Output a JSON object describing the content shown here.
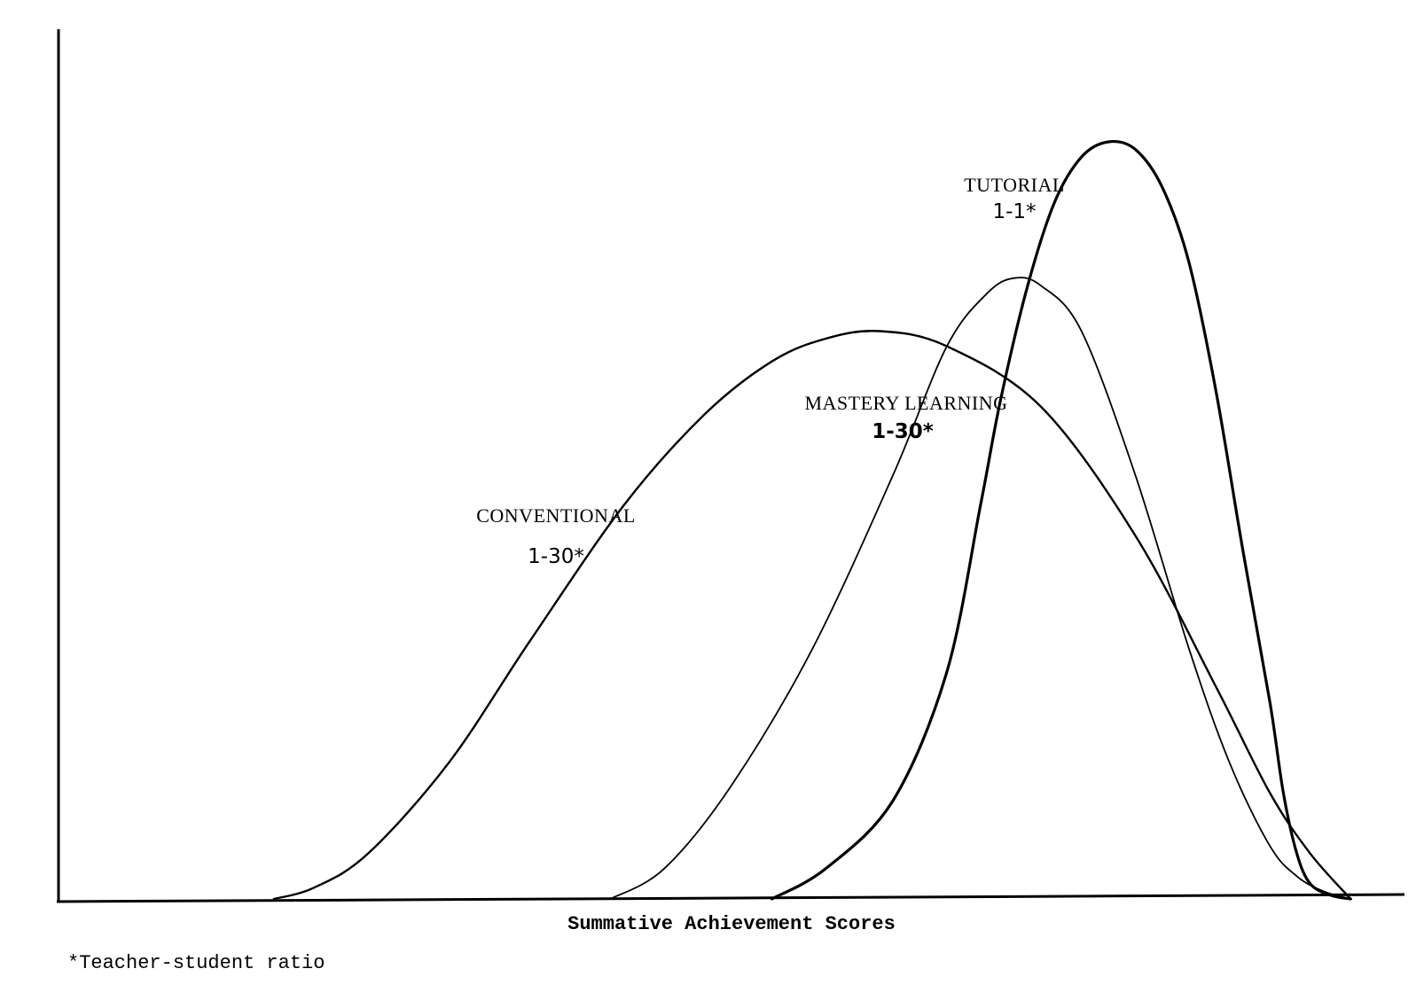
{
  "chart_data": {
    "type": "line",
    "title": "",
    "xlabel": "Summative Achievement Scores",
    "ylabel": "",
    "x_ticks": false,
    "y_ticks": false,
    "grid": false,
    "xlim": [
      0,
      100
    ],
    "ylim": [
      0,
      100
    ],
    "series": [
      {
        "name": "CONVENTIONAL",
        "ratio": "1-30*",
        "x": [
          16,
          19,
          23,
          29,
          35,
          42,
          48,
          53,
          57,
          61,
          66,
          73,
          80,
          86,
          90,
          93,
          96
        ],
        "y": [
          0,
          1.5,
          6,
          18,
          34,
          52,
          64,
          71,
          74,
          75,
          73,
          65,
          48,
          28,
          14,
          6,
          0
        ],
        "stroke_width": 2.4
      },
      {
        "name": "MASTERY LEARNING",
        "ratio": "1-30*",
        "x": [
          41,
          45,
          50,
          56,
          62,
          66,
          69,
          71,
          73,
          76,
          80,
          84,
          87,
          90,
          92,
          94,
          96
        ],
        "y": [
          0,
          4,
          15,
          33,
          56,
          73,
          80,
          82,
          81,
          75,
          56,
          33,
          18,
          7,
          3,
          1,
          0
        ],
        "stroke_width": 1.8
      },
      {
        "name": "TUTORIAL",
        "ratio": "1-1*",
        "x": [
          53,
          57,
          62,
          66,
          68.5,
          70,
          72,
          74,
          76,
          78,
          80,
          82,
          84,
          86,
          88,
          90,
          91,
          92,
          93,
          94.5,
          96
        ],
        "y": [
          0,
          4,
          13,
          30,
          52,
          66,
          81,
          92,
          98,
          100,
          99,
          94,
          84,
          67,
          46,
          26,
          14,
          6,
          2,
          0.5,
          0
        ],
        "stroke_width": 3.2
      }
    ],
    "footnote": "*Teacher-student ratio"
  }
}
